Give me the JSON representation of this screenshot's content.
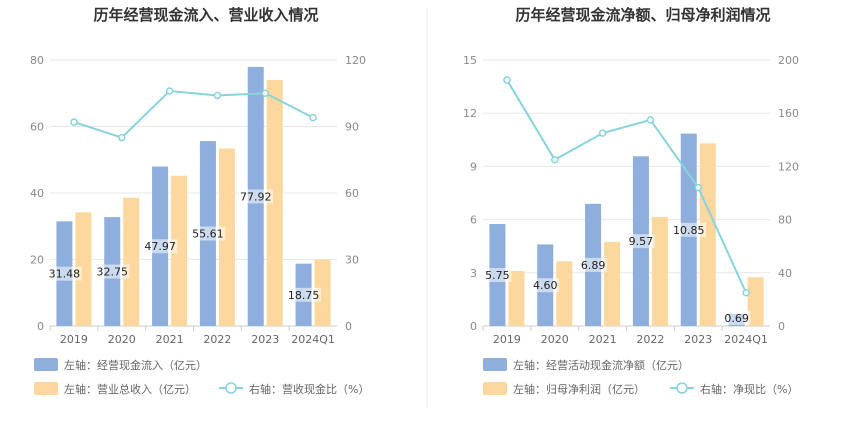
{
  "chart_data": [
    {
      "type": "bar",
      "title": "历年经营现金流入、营业收入情况",
      "categories": [
        "2019",
        "2020",
        "2021",
        "2022",
        "2023",
        "2024Q1"
      ],
      "left_axis": {
        "ticks": [
          "0",
          "20",
          "40",
          "60",
          "80"
        ],
        "ylim": [
          0,
          80
        ]
      },
      "right_axis": {
        "ticks": [
          "0",
          "30",
          "60",
          "90",
          "120"
        ],
        "ylim": [
          0,
          120
        ]
      },
      "series": [
        {
          "name": "左轴：经营现金流入（亿元）",
          "axis": "left",
          "kind": "bar",
          "color": "#8eaedd",
          "values": [
            31.48,
            32.75,
            47.97,
            55.61,
            77.92,
            18.75
          ],
          "labels": [
            "31.48",
            "32.75",
            "47.97",
            "55.61",
            "77.92",
            "18.75"
          ]
        },
        {
          "name": "左轴：营业总收入（亿元）",
          "axis": "left",
          "kind": "bar",
          "color": "#fdd89e",
          "values": [
            34.2,
            38.6,
            45.2,
            53.4,
            74.0,
            20.0
          ]
        },
        {
          "name": "右轴：营收现金比（%）",
          "axis": "right",
          "kind": "line",
          "color": "#88d4dc",
          "values": [
            92,
            85,
            106,
            104,
            105,
            94
          ]
        }
      ],
      "grid": true
    },
    {
      "type": "bar",
      "title": "历年经营现金流净额、归母净利润情况",
      "categories": [
        "2019",
        "2020",
        "2021",
        "2022",
        "2023",
        "2024Q1"
      ],
      "left_axis": {
        "ticks": [
          "0",
          "3",
          "6",
          "9",
          "12",
          "15"
        ],
        "ylim": [
          0,
          15
        ]
      },
      "right_axis": {
        "ticks": [
          "0",
          "40",
          "80",
          "120",
          "160",
          "200"
        ],
        "ylim": [
          0,
          200
        ]
      },
      "series": [
        {
          "name": "左轴：经营活动现金流净额（亿元）",
          "axis": "left",
          "kind": "bar",
          "color": "#8eaedd",
          "values": [
            5.75,
            4.6,
            6.89,
            9.57,
            10.85,
            0.69
          ],
          "labels": [
            "5.75",
            "4.60",
            "6.89",
            "9.57",
            "10.85",
            "0.69"
          ]
        },
        {
          "name": "左轴：归母净利润（亿元）",
          "axis": "left",
          "kind": "bar",
          "color": "#fdd89e",
          "values": [
            3.1,
            3.65,
            4.75,
            6.15,
            10.3,
            2.75
          ]
        },
        {
          "name": "右轴：净现比（%）",
          "axis": "right",
          "kind": "line",
          "color": "#88d4dc",
          "values": [
            185,
            125,
            145,
            155,
            104,
            25
          ]
        }
      ],
      "grid": true
    }
  ]
}
